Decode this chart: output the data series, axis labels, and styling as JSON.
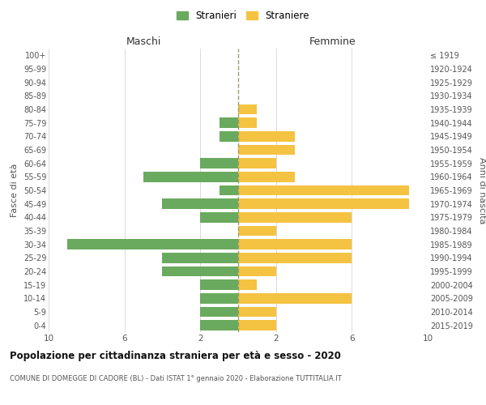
{
  "age_groups": [
    "0-4",
    "5-9",
    "10-14",
    "15-19",
    "20-24",
    "25-29",
    "30-34",
    "35-39",
    "40-44",
    "45-49",
    "50-54",
    "55-59",
    "60-64",
    "65-69",
    "70-74",
    "75-79",
    "80-84",
    "85-89",
    "90-94",
    "95-99",
    "100+"
  ],
  "birth_years": [
    "2015-2019",
    "2010-2014",
    "2005-2009",
    "2000-2004",
    "1995-1999",
    "1990-1994",
    "1985-1989",
    "1980-1984",
    "1975-1979",
    "1970-1974",
    "1965-1969",
    "1960-1964",
    "1955-1959",
    "1950-1954",
    "1945-1949",
    "1940-1944",
    "1935-1939",
    "1930-1934",
    "1925-1929",
    "1920-1924",
    "≤ 1919"
  ],
  "maschi": [
    2,
    2,
    2,
    2,
    4,
    4,
    9,
    0,
    2,
    4,
    1,
    5,
    2,
    0,
    1,
    1,
    0,
    0,
    0,
    0,
    0
  ],
  "femmine": [
    2,
    2,
    6,
    1,
    2,
    6,
    6,
    2,
    6,
    9,
    9,
    3,
    2,
    3,
    3,
    1,
    1,
    0,
    0,
    0,
    0
  ],
  "maschi_color": "#6aaa5e",
  "femmine_color": "#f5c342",
  "dashed_line_color": "#9c9c6a",
  "background_color": "#ffffff",
  "grid_color": "#cccccc",
  "title": "Popolazione per cittadinanza straniera per età e sesso - 2020",
  "subtitle": "COMUNE DI DOMEGGE DI CADORE (BL) - Dati ISTAT 1° gennaio 2020 - Elaborazione TUTTITALIA.IT",
  "ylabel_left": "Fasce di età",
  "ylabel_right": "Anni di nascita",
  "xlabel_maschi": "Maschi",
  "xlabel_femmine": "Femmine",
  "legend_maschi": "Stranieri",
  "legend_femmine": "Straniere",
  "xlim": 10
}
